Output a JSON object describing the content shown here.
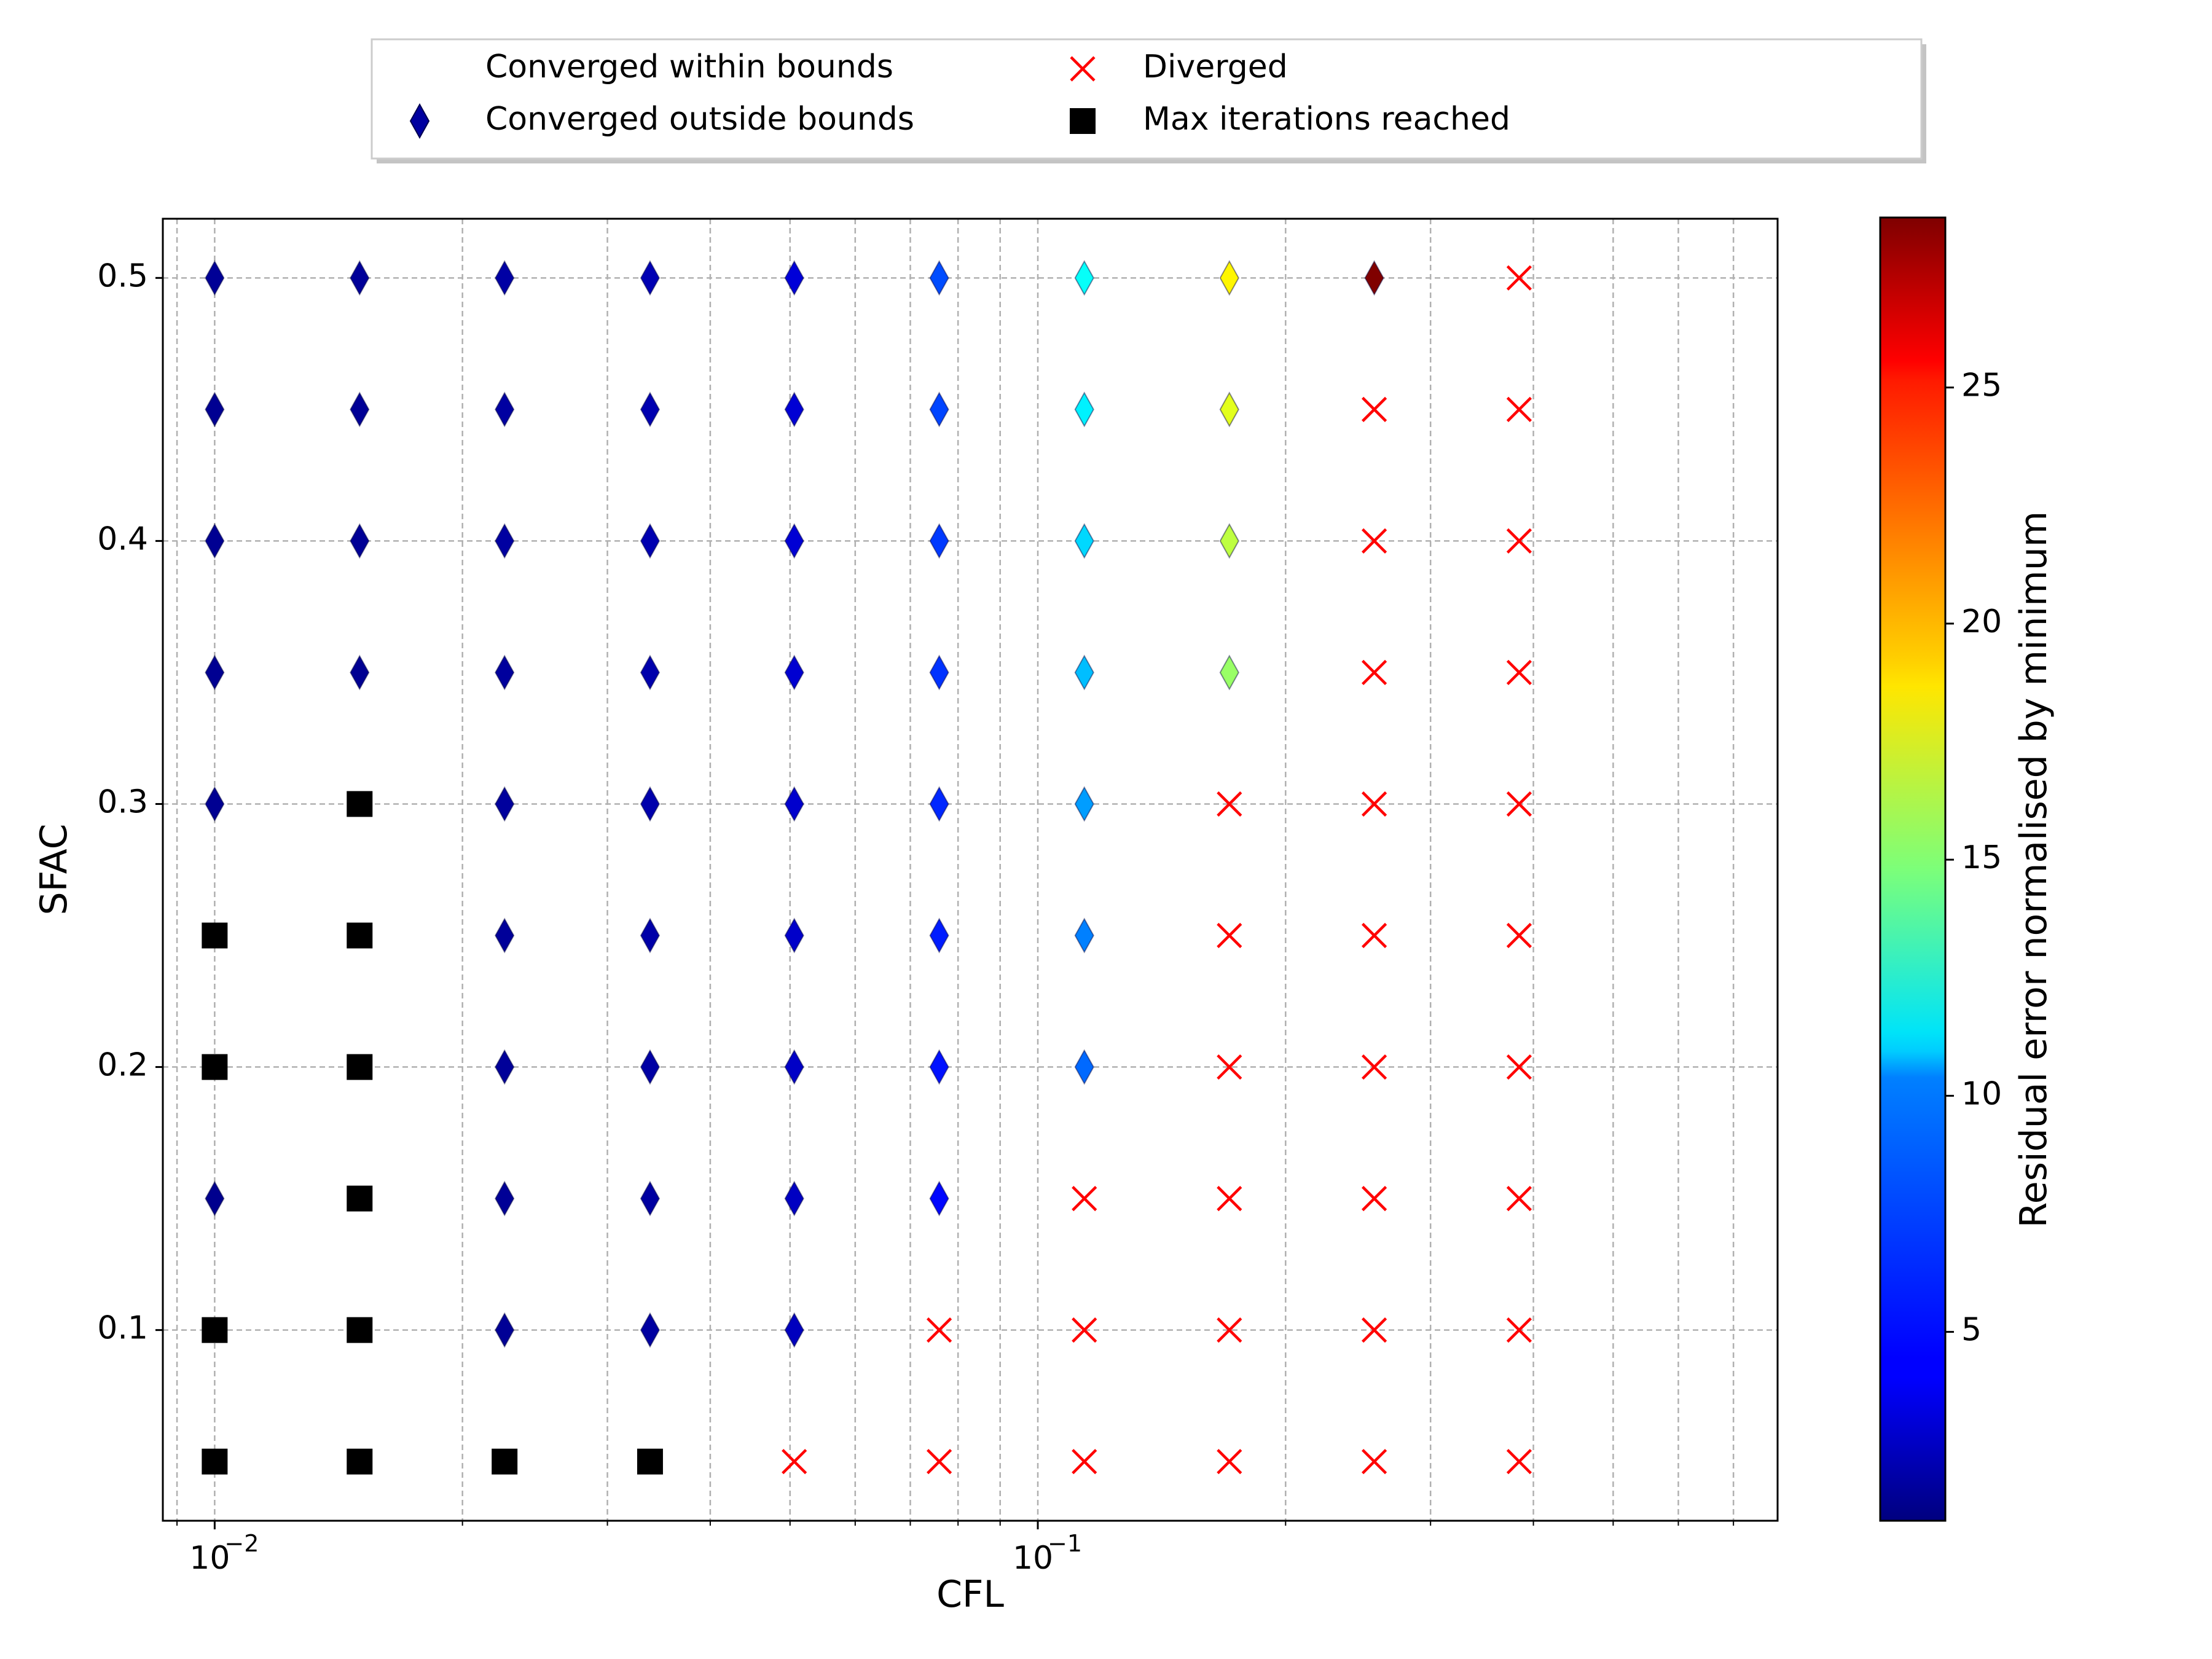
{
  "chart_data": {
    "type": "scatter",
    "title": "",
    "xlabel": "CFL",
    "ylabel": "SFAC",
    "xscale": "log",
    "xlim": [
      0.00865,
      0.792
    ],
    "ylim": [
      0.0275,
      0.5225
    ],
    "x_ticks": [
      {
        "value": 0.01,
        "base": "10",
        "exp": "−2"
      },
      {
        "value": 0.1,
        "base": "10",
        "exp": "−1"
      }
    ],
    "y_ticks": [
      {
        "value": 0.1,
        "label": "0.1"
      },
      {
        "value": 0.2,
        "label": "0.2"
      },
      {
        "value": 0.3,
        "label": "0.3"
      },
      {
        "value": 0.4,
        "label": "0.4"
      },
      {
        "value": 0.5,
        "label": "0.5"
      }
    ],
    "grid": true,
    "legend": {
      "placement": "top-center, above plot",
      "entries": [
        {
          "label": "Converged within bounds",
          "marker": "none"
        },
        {
          "label": "Diverged",
          "marker": "x",
          "color": "#ff0000"
        },
        {
          "label": "Converged outside bounds",
          "marker": "diamond",
          "color": "#0000a0"
        },
        {
          "label": "Max iterations reached",
          "marker": "square",
          "color": "#000000"
        }
      ]
    },
    "colorbar": {
      "label": "Residual error normalised by minimum",
      "colormap": "jet",
      "range": [
        1,
        28.6
      ],
      "ticks": [
        {
          "value": 5,
          "label": "5"
        },
        {
          "value": 10,
          "label": "10"
        },
        {
          "value": 15,
          "label": "15"
        },
        {
          "value": 20,
          "label": "20"
        },
        {
          "value": 25,
          "label": "25"
        }
      ]
    },
    "x_values": [
      0.01,
      0.015,
      0.0225,
      0.0338,
      0.0506,
      0.0759,
      0.1139,
      0.1709,
      0.2563,
      0.3844
    ],
    "y_values": [
      0.05,
      0.1,
      0.15,
      0.2,
      0.25,
      0.3,
      0.35,
      0.4,
      0.45,
      0.5
    ],
    "status_codes": {
      "D": "Converged outside bounds",
      "X": "Diverged",
      "M": "Max iterations reached"
    },
    "grid_rows": [
      {
        "sfac": 0.5,
        "status": [
          "D",
          "D",
          "D",
          "D",
          "D",
          "D",
          "D",
          "D",
          "D",
          "X"
        ],
        "residual": [
          1.6,
          1.7,
          2.0,
          2.4,
          3.4,
          6.5,
          11.5,
          18.5,
          28.6,
          null
        ]
      },
      {
        "sfac": 0.45,
        "status": [
          "D",
          "D",
          "D",
          "D",
          "D",
          "D",
          "D",
          "D",
          "X",
          "X"
        ],
        "residual": [
          1.5,
          1.6,
          1.9,
          2.3,
          3.3,
          6.3,
          11.0,
          17.5,
          null,
          null
        ]
      },
      {
        "sfac": 0.4,
        "status": [
          "D",
          "D",
          "D",
          "D",
          "D",
          "D",
          "D",
          "D",
          "X",
          "X"
        ],
        "residual": [
          1.5,
          1.6,
          1.9,
          2.3,
          3.3,
          6.0,
          10.3,
          16.5,
          null,
          null
        ]
      },
      {
        "sfac": 0.35,
        "status": [
          "D",
          "D",
          "D",
          "D",
          "D",
          "D",
          "D",
          "D",
          "X",
          "X"
        ],
        "residual": [
          1.5,
          1.5,
          1.8,
          2.2,
          3.2,
          5.8,
          9.6,
          15.5,
          null,
          null
        ]
      },
      {
        "sfac": 0.3,
        "status": [
          "D",
          "M",
          "D",
          "D",
          "D",
          "D",
          "D",
          "X",
          "X",
          "X"
        ],
        "residual": [
          1.5,
          null,
          1.8,
          2.2,
          3.1,
          5.5,
          8.7,
          null,
          null,
          null
        ]
      },
      {
        "sfac": 0.25,
        "status": [
          "M",
          "M",
          "D",
          "D",
          "D",
          "D",
          "D",
          "X",
          "X",
          "X"
        ],
        "residual": [
          null,
          null,
          1.7,
          2.1,
          3.0,
          5.2,
          7.9,
          null,
          null,
          null
        ]
      },
      {
        "sfac": 0.2,
        "status": [
          "M",
          "M",
          "D",
          "D",
          "D",
          "D",
          "D",
          "X",
          "X",
          "X"
        ],
        "residual": [
          null,
          null,
          1.7,
          2.0,
          2.9,
          4.9,
          7.3,
          null,
          null,
          null
        ]
      },
      {
        "sfac": 0.15,
        "status": [
          "D",
          "M",
          "D",
          "D",
          "D",
          "D",
          "X",
          "X",
          "X",
          "X"
        ],
        "residual": [
          1.4,
          null,
          1.6,
          1.9,
          2.8,
          4.6,
          null,
          null,
          null,
          null
        ]
      },
      {
        "sfac": 0.1,
        "status": [
          "M",
          "M",
          "D",
          "D",
          "D",
          "X",
          "X",
          "X",
          "X",
          "X"
        ],
        "residual": [
          null,
          null,
          1.6,
          1.9,
          2.7,
          null,
          null,
          null,
          null,
          null
        ]
      },
      {
        "sfac": 0.05,
        "status": [
          "M",
          "M",
          "M",
          "M",
          "X",
          "X",
          "X",
          "X",
          "X",
          "X"
        ],
        "residual": [
          null,
          null,
          null,
          null,
          null,
          null,
          null,
          null,
          null,
          null
        ]
      }
    ]
  }
}
